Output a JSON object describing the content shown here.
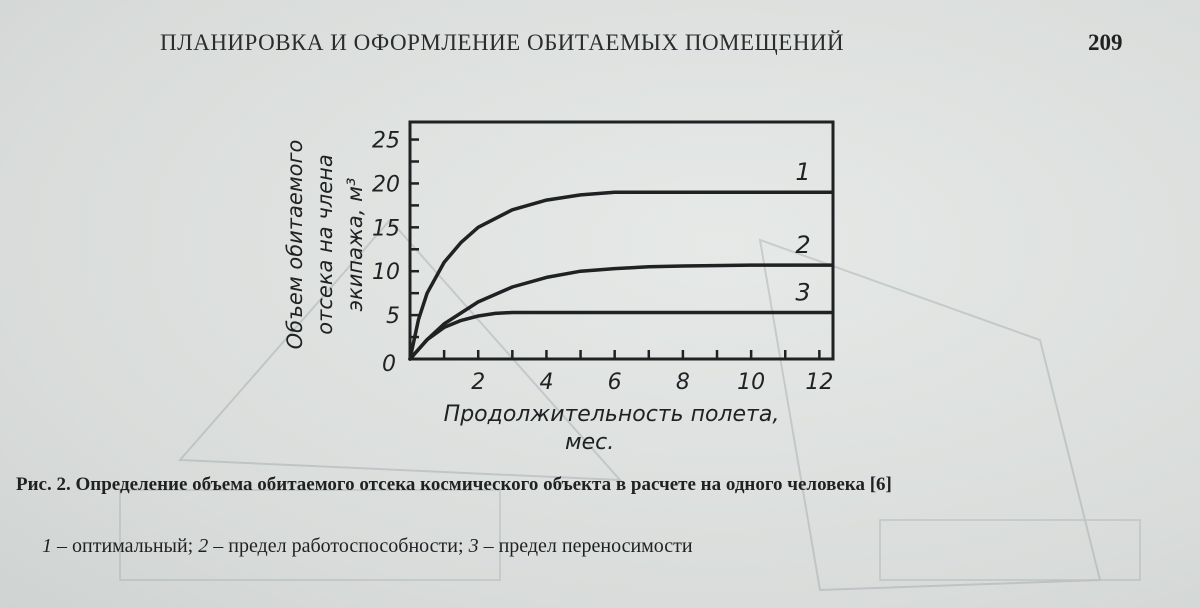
{
  "header": {
    "running_title": "ПЛАНИРОВКА И ОФОРМЛЕНИЕ ОБИТАЕМЫХ ПОМЕЩЕНИЙ",
    "page_number": "209"
  },
  "chart_data": {
    "type": "line",
    "ylabel_lines": [
      "Объем обитаемого",
      "отсека на члена",
      "экипажа, м³"
    ],
    "xlabel_lines": [
      "Продолжительность полета,",
      "мес."
    ],
    "xlim": [
      0,
      12
    ],
    "ylim": [
      0,
      27
    ],
    "x_ticks": [
      2,
      4,
      6,
      8,
      10,
      12
    ],
    "y_ticks": [
      5,
      10,
      15,
      20,
      25
    ],
    "origin_label": "0",
    "grid": false,
    "series": [
      {
        "name": "1",
        "x": [
          0,
          0.25,
          0.5,
          1,
          1.5,
          2,
          3,
          4,
          5,
          6,
          6.5,
          8,
          10,
          12.5
        ],
        "y": [
          0,
          4.5,
          7.5,
          11,
          13.3,
          15,
          17,
          18.1,
          18.7,
          19,
          19,
          19,
          19,
          19
        ]
      },
      {
        "name": "2",
        "x": [
          0,
          0.5,
          1,
          2,
          3,
          4,
          5,
          6,
          7,
          8,
          10,
          12.5
        ],
        "y": [
          0,
          2.2,
          4,
          6.5,
          8.2,
          9.3,
          10,
          10.3,
          10.5,
          10.6,
          10.7,
          10.7
        ]
      },
      {
        "name": "3",
        "x": [
          0,
          0.5,
          1,
          1.5,
          2,
          2.5,
          3,
          4,
          6,
          8,
          10,
          12.5
        ],
        "y": [
          0,
          2.2,
          3.6,
          4.4,
          4.9,
          5.2,
          5.3,
          5.3,
          5.3,
          5.3,
          5.3,
          5.3
        ]
      }
    ],
    "curve_labels": [
      {
        "text": "1",
        "series": 0
      },
      {
        "text": "2",
        "series": 1
      },
      {
        "text": "3",
        "series": 2
      }
    ]
  },
  "figure": {
    "caption": "Рис. 2. Определение объема обитаемого отсека космического объекта в расчете на одного человека [6]",
    "legend": [
      {
        "num": "1",
        "text": " – оптимальный; "
      },
      {
        "num": "2",
        "text": " – предел работоспособности; "
      },
      {
        "num": "3",
        "text": " – предел переносимости"
      }
    ]
  }
}
